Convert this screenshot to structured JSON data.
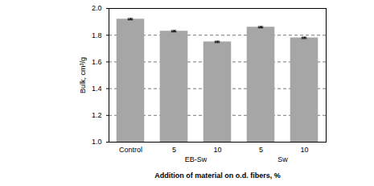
{
  "chart_data": {
    "type": "bar",
    "categories": [
      "Control",
      "5",
      "10",
      "5",
      "10"
    ],
    "group_labels": [
      null,
      "EB-Sw",
      "EB-Sw",
      "Sw",
      "Sw"
    ],
    "values": [
      1.92,
      1.83,
      1.75,
      1.86,
      1.78
    ],
    "errors": [
      0.005,
      0.005,
      0.005,
      0.005,
      0.005
    ],
    "color": "#a6a6a6",
    "xlabel": "Addition of material on o.d. fibers, %",
    "ylabel": "Bulk, cm³/g",
    "ylim": [
      1.0,
      2.0
    ],
    "yticks": [
      {
        "value": 1.0,
        "label": "1.0"
      },
      1.2,
      1.4,
      1.6,
      1.8,
      {
        "value": 2.0,
        "label": "2.0"
      }
    ],
    "grid": true
  }
}
